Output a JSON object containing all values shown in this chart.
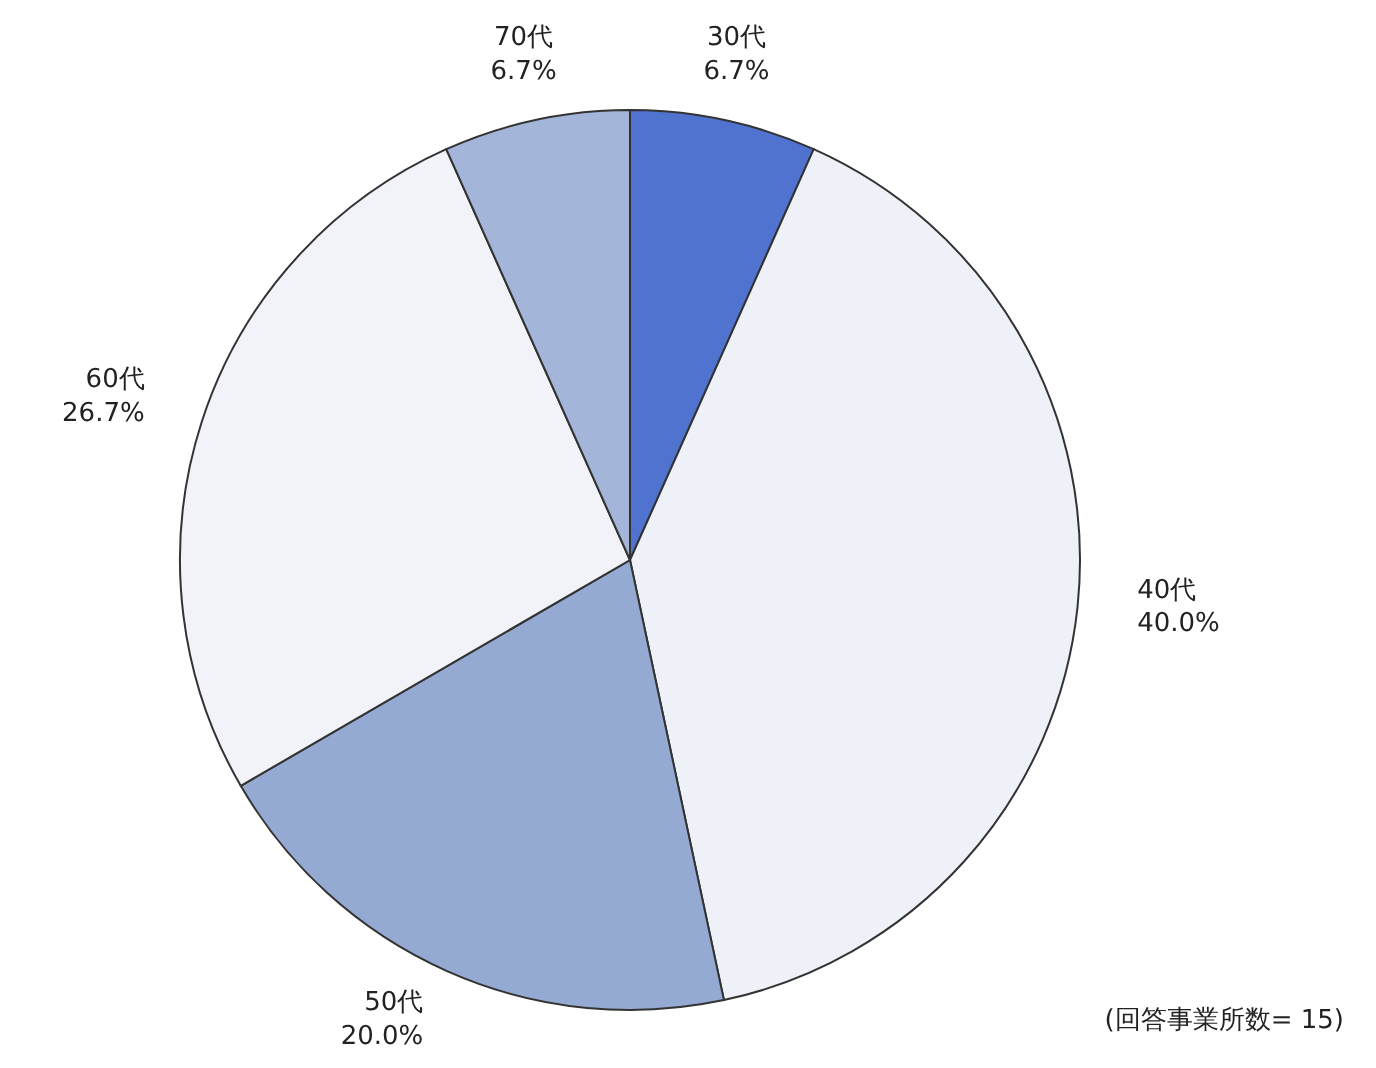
{
  "chart_data": {
    "type": "pie",
    "categories": [
      "30代",
      "40代",
      "50代",
      "60代",
      "70代"
    ],
    "values": [
      6.7,
      40.0,
      20.0,
      26.7,
      6.7
    ],
    "value_labels": [
      "6.7%",
      "40.0%",
      "20.0%",
      "26.7%",
      "6.7%"
    ],
    "colors": [
      "#4f73cf",
      "#eef1f8",
      "#94aad3",
      "#f1f3f8",
      "#a3b5d8"
    ],
    "annotations": [
      "(回答事業所数= 15)"
    ]
  }
}
